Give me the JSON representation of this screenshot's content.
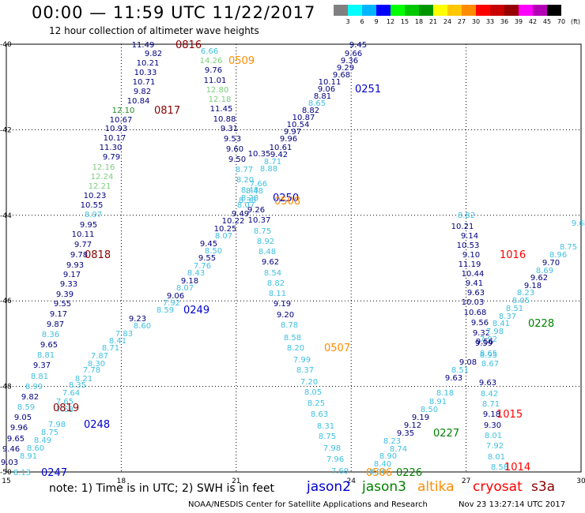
{
  "header": {
    "title": "00:00 — 11:59 UTC 11/22/2017",
    "subtitle": "12 hour collection of altimeter wave heights"
  },
  "color_scale": {
    "colors": [
      "#808080",
      "#00ffff",
      "#00b4ff",
      "#0000ff",
      "#00ff00",
      "#00c800",
      "#009600",
      "#ffff00",
      "#ffc800",
      "#ff8c00",
      "#ff0000",
      "#c80000",
      "#960000",
      "#ff00ff",
      "#b400b4",
      "#000000"
    ],
    "labels": [
      "3",
      "6",
      "9",
      "12",
      "15",
      "18",
      "21",
      "24",
      "27",
      "30",
      "33",
      "36",
      "39",
      "42",
      "45",
      "70",
      "(ft)"
    ]
  },
  "map": {
    "x_ticks": [
      "15",
      "18",
      "21",
      "24",
      "27",
      "30"
    ],
    "y_ticks": [
      "-40",
      "-42",
      "-44",
      "-46",
      "-48",
      "-50"
    ],
    "points": [
      [
        "11.49",
        181,
        56,
        "#000080"
      ],
      [
        "9.82",
        194,
        67,
        "#000080"
      ],
      [
        "10.21",
        187,
        79,
        "#000080"
      ],
      [
        "10.33",
        184,
        91,
        "#000080"
      ],
      [
        "10.71",
        182,
        103,
        "#000080"
      ],
      [
        "9.82",
        180,
        115,
        "#000080"
      ],
      [
        "10.84",
        175,
        127,
        "#000080"
      ],
      [
        "12.10",
        156,
        139,
        "#228b22"
      ],
      [
        "10.67",
        153,
        151,
        "#000080"
      ],
      [
        "10.93",
        147,
        162,
        "#000080"
      ],
      [
        "10.17",
        145,
        174,
        "#000080"
      ],
      [
        "11.30",
        140,
        186,
        "#000080"
      ],
      [
        "9.79",
        141,
        198,
        "#000080"
      ],
      [
        "12.16",
        131,
        211,
        "#7ccd7c"
      ],
      [
        "12.24",
        129,
        223,
        "#7ccd7c"
      ],
      [
        "12.21",
        126,
        235,
        "#7ccd7c"
      ],
      [
        "10.23",
        120,
        247,
        "#000080"
      ],
      [
        "10.55",
        116,
        259,
        "#000080"
      ],
      [
        "8.97",
        118,
        271,
        "#40c0e0"
      ],
      [
        "9.95",
        112,
        284,
        "#000080"
      ],
      [
        "10.11",
        105,
        296,
        "#000080"
      ],
      [
        "9.77",
        105,
        309,
        "#000080"
      ],
      [
        "9.78",
        100,
        322,
        "#000080"
      ],
      [
        "9.93",
        95,
        335,
        "#000080"
      ],
      [
        "9.17",
        91,
        347,
        "#000080"
      ],
      [
        "9.33",
        87,
        359,
        "#000080"
      ],
      [
        "9.39",
        82,
        372,
        "#000080"
      ],
      [
        "9.55",
        79,
        384,
        "#000080"
      ],
      [
        "9.17",
        74,
        397,
        "#000080"
      ],
      [
        "9.87",
        70,
        410,
        "#000080"
      ],
      [
        "8.36",
        64,
        423,
        "#40c0e0"
      ],
      [
        "9.65",
        62,
        436,
        "#000080"
      ],
      [
        "8.81",
        58,
        449,
        "#40c0e0"
      ],
      [
        "9.37",
        53,
        462,
        "#000080"
      ],
      [
        "8.81",
        50,
        476,
        "#40c0e0"
      ],
      [
        "8.99",
        43,
        489,
        "#40c0e0"
      ],
      [
        "9.82",
        38,
        502,
        "#000080"
      ],
      [
        "8.59",
        33,
        515,
        "#40c0e0"
      ],
      [
        "9.05",
        29,
        528,
        "#000080"
      ],
      [
        "9.96",
        24,
        541,
        "#000080"
      ],
      [
        "9.65",
        20,
        555,
        "#000080"
      ],
      [
        "9.46",
        14,
        568,
        "#000080"
      ],
      [
        "9.03",
        12,
        585,
        "#000080"
      ],
      [
        "8.91",
        36,
        577,
        "#40c0e0"
      ],
      [
        "8.60",
        45,
        567,
        "#40c0e0"
      ],
      [
        "8.49",
        54,
        557,
        "#40c0e0"
      ],
      [
        "8.75",
        63,
        547,
        "#40c0e0"
      ],
      [
        "7.98",
        72,
        537,
        "#40c0e0"
      ],
      [
        "7.68",
        82,
        518,
        "#40c0e0"
      ],
      [
        "7.65",
        82,
        508,
        "#40c0e0"
      ],
      [
        "7.64",
        90,
        497,
        "#40c0e0"
      ],
      [
        "8.35",
        98,
        487,
        "#40c0e0"
      ],
      [
        "8.21",
        106,
        479,
        "#40c0e0"
      ],
      [
        "7.78",
        116,
        468,
        "#40c0e0"
      ],
      [
        "8.30",
        122,
        460,
        "#40c0e0"
      ],
      [
        "7.87",
        126,
        450,
        "#40c0e0"
      ],
      [
        "8.71",
        140,
        440,
        "#40c0e0"
      ],
      [
        "8.41",
        149,
        431,
        "#40c0e0"
      ],
      [
        "7.83",
        157,
        422,
        "#40c0e0"
      ],
      [
        "9.23",
        174,
        403,
        "#000080"
      ],
      [
        "8.60",
        180,
        412,
        "#40c0e0"
      ],
      [
        "7.92",
        217,
        383,
        "#40c0e0"
      ],
      [
        "8.59",
        209,
        392,
        "#40c0e0"
      ],
      [
        "9.06",
        222,
        374,
        "#000080"
      ],
      [
        "8.07",
        234,
        364,
        "#40c0e0"
      ],
      [
        "9.18",
        240,
        355,
        "#000080"
      ],
      [
        "8.43",
        248,
        345,
        "#40c0e0"
      ],
      [
        "7.76",
        256,
        336,
        "#40c0e0"
      ],
      [
        "9.55",
        262,
        326,
        "#000080"
      ],
      [
        "8.50",
        270,
        317,
        "#40c0e0"
      ],
      [
        "9.45",
        264,
        308,
        "#000080"
      ],
      [
        "8.07",
        283,
        298,
        "#40c0e0"
      ],
      [
        "10.25",
        285,
        289,
        "#000080"
      ],
      [
        "10.22",
        295,
        279,
        "#000080"
      ],
      [
        "9.49",
        304,
        270,
        "#000080"
      ],
      [
        "8.13",
        28,
        598,
        "#40c0e0"
      ],
      [
        "6.66",
        265,
        64,
        "#40c0e0"
      ],
      [
        "14.26",
        267,
        76,
        "#7ccd7c"
      ],
      [
        "9.76",
        270,
        88,
        "#000080"
      ],
      [
        "11.01",
        272,
        101,
        "#000080"
      ],
      [
        "12.80",
        275,
        113,
        "#7ccd7c"
      ],
      [
        "12.18",
        278,
        125,
        "#7ccd7c"
      ],
      [
        "11.45",
        280,
        137,
        "#000080"
      ],
      [
        "10.88",
        284,
        150,
        "#000080"
      ],
      [
        "9.31",
        290,
        162,
        "#000080"
      ],
      [
        "9.53",
        294,
        175,
        "#000080"
      ],
      [
        "9.60",
        297,
        188,
        "#000080"
      ],
      [
        "9.50",
        300,
        201,
        "#000080"
      ],
      [
        "8.77",
        309,
        214,
        "#40c0e0"
      ],
      [
        "8.20",
        310,
        227,
        "#40c0e0"
      ],
      [
        "8.48",
        316,
        240,
        "#40c0e0"
      ],
      [
        "8.38",
        313,
        253,
        "#40c0e0"
      ],
      [
        "9.26",
        324,
        265,
        "#000080"
      ],
      [
        "10.37",
        328,
        278,
        "#000080"
      ],
      [
        "8.75",
        332,
        292,
        "#40c0e0"
      ],
      [
        "8.92",
        336,
        305,
        "#40c0e0"
      ],
      [
        "8.48",
        338,
        318,
        "#40c0e0"
      ],
      [
        "9.62",
        342,
        331,
        "#000080"
      ],
      [
        "8.54",
        345,
        345,
        "#40c0e0"
      ],
      [
        "8.82",
        349,
        358,
        "#40c0e0"
      ],
      [
        "8.11",
        351,
        371,
        "#40c0e0"
      ],
      [
        "9.19",
        357,
        384,
        "#000080"
      ],
      [
        "9.20",
        361,
        398,
        "#000080"
      ],
      [
        "8.78",
        366,
        411,
        "#40c0e0"
      ],
      [
        "8.58",
        370,
        427,
        "#40c0e0"
      ],
      [
        "8.20",
        374,
        440,
        "#40c0e0"
      ],
      [
        "7.99",
        382,
        455,
        "#40c0e0"
      ],
      [
        "8.37",
        386,
        468,
        "#40c0e0"
      ],
      [
        "7.20",
        391,
        483,
        "#40c0e0"
      ],
      [
        "8.05",
        396,
        496,
        "#40c0e0"
      ],
      [
        "8.25",
        400,
        510,
        "#40c0e0"
      ],
      [
        "8.63",
        404,
        524,
        "#40c0e0"
      ],
      [
        "8.31",
        412,
        539,
        "#40c0e0"
      ],
      [
        "8.75",
        414,
        552,
        "#40c0e0"
      ],
      [
        "7.98",
        420,
        567,
        "#40c0e0"
      ],
      [
        "7.96",
        424,
        581,
        "#40c0e0"
      ],
      [
        "7.69",
        430,
        596,
        "#40c0e0"
      ],
      [
        "9.45",
        453,
        56,
        "#000080"
      ],
      [
        "9.66",
        447,
        67,
        "#000080"
      ],
      [
        "9.36",
        442,
        76,
        "#000080"
      ],
      [
        "9.29",
        437,
        85,
        "#000080"
      ],
      [
        "9.68",
        432,
        94,
        "#000080"
      ],
      [
        "10.11",
        417,
        103,
        "#000080"
      ],
      [
        "9.06",
        413,
        112,
        "#000080"
      ],
      [
        "8.65",
        401,
        130,
        "#40c0e0"
      ],
      [
        "8.81",
        408,
        121,
        "#000080"
      ],
      [
        "8.82",
        393,
        139,
        "#000080"
      ],
      [
        "10.87",
        384,
        148,
        "#000080"
      ],
      [
        "10.54",
        377,
        157,
        "#000080"
      ],
      [
        "9.97",
        370,
        166,
        "#000080"
      ],
      [
        "9.96",
        365,
        175,
        "#000080"
      ],
      [
        "10.61",
        355,
        186,
        "#000080"
      ],
      [
        "9.42",
        353,
        195,
        "#000080"
      ],
      [
        "8.71",
        345,
        204,
        "#40c0e0"
      ],
      [
        "8.88",
        340,
        213,
        "#40c0e0"
      ],
      [
        "10.35",
        328,
        194,
        "#000080"
      ],
      [
        "7.66",
        327,
        232,
        "#40c0e0"
      ],
      [
        "8.48",
        322,
        241,
        "#40c0e0"
      ],
      [
        "8.28",
        316,
        250,
        "#40c0e0"
      ],
      [
        "8.07",
        311,
        259,
        "#40c0e0"
      ],
      [
        "8.82",
        590,
        272,
        "#40c0e0"
      ],
      [
        "10.21",
        585,
        286,
        "#000080"
      ],
      [
        "9.14",
        594,
        298,
        "#000080"
      ],
      [
        "10.53",
        592,
        310,
        "#000080"
      ],
      [
        "9.10",
        596,
        322,
        "#000080"
      ],
      [
        "11.19",
        594,
        334,
        "#000080"
      ],
      [
        "10.44",
        598,
        346,
        "#000080"
      ],
      [
        "9.41",
        600,
        358,
        "#000080"
      ],
      [
        "9.63",
        602,
        370,
        "#000080"
      ],
      [
        "10.03",
        598,
        382,
        "#000080"
      ],
      [
        "10.68",
        601,
        395,
        "#000080"
      ],
      [
        "9.56",
        607,
        408,
        "#000080"
      ],
      [
        "9.32",
        609,
        421,
        "#000080"
      ],
      [
        "9.59",
        612,
        434,
        "#000080"
      ],
      [
        "8.67",
        620,
        460,
        "#40c0e0"
      ],
      [
        "8.65",
        618,
        447,
        "#40c0e0"
      ],
      [
        "9.63",
        617,
        484,
        "#000080"
      ],
      [
        "8.42",
        619,
        498,
        "#40c0e0"
      ],
      [
        "8.71",
        621,
        511,
        "#40c0e0"
      ],
      [
        "9.18",
        622,
        524,
        "#000080"
      ],
      [
        "9.30",
        623,
        538,
        "#000080"
      ],
      [
        "8.01",
        624,
        551,
        "#40c0e0"
      ],
      [
        "7.92",
        626,
        564,
        "#40c0e0"
      ],
      [
        "8.01",
        628,
        578,
        "#40c0e0"
      ],
      [
        "8.58",
        632,
        591,
        "#40c0e0"
      ],
      [
        "9.68",
        734,
        282,
        "#40c0e0"
      ],
      [
        "8.75",
        719,
        312,
        "#40c0e0"
      ],
      [
        "8.96",
        706,
        322,
        "#40c0e0"
      ],
      [
        "9.70",
        697,
        332,
        "#000080"
      ],
      [
        "8.69",
        689,
        342,
        "#40c0e0"
      ],
      [
        "9.62",
        682,
        351,
        "#000080"
      ],
      [
        "9.18",
        674,
        361,
        "#000080"
      ],
      [
        "8.23",
        665,
        370,
        "#40c0e0"
      ],
      [
        "8.05",
        659,
        380,
        "#40c0e0"
      ],
      [
        "8.51",
        651,
        390,
        "#40c0e0"
      ],
      [
        "8.37",
        642,
        400,
        "#40c0e0"
      ],
      [
        "8.41",
        634,
        409,
        "#40c0e0"
      ],
      [
        "7.98",
        626,
        419,
        "#40c0e0"
      ],
      [
        "7.92",
        618,
        429,
        "#40c0e0"
      ],
      [
        "9.56",
        613,
        432,
        "#000080"
      ],
      [
        "8.95",
        618,
        449,
        "#40c0e0"
      ],
      [
        "9.08",
        592,
        458,
        "#000080"
      ],
      [
        "8.51",
        582,
        468,
        "#40c0e0"
      ],
      [
        "9.63",
        574,
        478,
        "#000080"
      ],
      [
        "8.18",
        563,
        497,
        "#40c0e0"
      ],
      [
        "8.91",
        554,
        508,
        "#40c0e0"
      ],
      [
        "8.50",
        543,
        518,
        "#40c0e0"
      ],
      [
        "9.19",
        532,
        528,
        "#000080"
      ],
      [
        "9.12",
        522,
        538,
        "#000080"
      ],
      [
        "9.35",
        513,
        548,
        "#000080"
      ],
      [
        "8.74",
        504,
        568,
        "#40c0e0"
      ],
      [
        "8.90",
        491,
        577,
        "#40c0e0"
      ],
      [
        "8.40",
        484,
        587,
        "#40c0e0"
      ],
      [
        "8.90",
        478,
        597,
        "#40c0e0"
      ],
      [
        "8.23",
        496,
        558,
        "#40c0e0"
      ]
    ],
    "pass_labels": [
      [
        "0816",
        222,
        56,
        "#8b0000"
      ],
      [
        "0509",
        289,
        76,
        "#ff8c00"
      ],
      [
        "0817",
        195,
        139,
        "#8b0000"
      ],
      [
        "0251",
        449,
        112,
        "#0000cd"
      ],
      [
        "0818",
        107,
        322,
        "#8b0000"
      ],
      [
        "0249",
        232,
        392,
        "#0000cd"
      ],
      [
        "0819",
        67,
        516,
        "#8b0000"
      ],
      [
        "0248",
        106,
        537,
        "#0000cd"
      ],
      [
        "0247",
        52,
        598,
        "#0000cd"
      ],
      [
        "0250",
        345,
        250,
        "#0000cd"
      ],
      [
        "0508",
        347,
        254,
        "#ff8c00"
      ],
      [
        "0507",
        410,
        440,
        "#ff8c00"
      ],
      [
        "1016",
        632,
        322,
        "#ff0000"
      ],
      [
        "0228",
        668,
        409,
        "#008000"
      ],
      [
        "0227",
        548,
        548,
        "#008000"
      ],
      [
        "1015",
        628,
        524,
        "#ff0000"
      ],
      [
        "1014",
        638,
        591,
        "#ff0000"
      ],
      [
        "0226",
        501,
        598,
        "#008000"
      ],
      [
        "0506",
        463,
        598,
        "#ff8c00"
      ]
    ]
  },
  "footer": {
    "note": "note: 1) Time is in UTC; 2) SWH is in feet",
    "satellites": [
      {
        "name": "jason2",
        "color": "#0000cd",
        "left": 388
      },
      {
        "name": "jason3",
        "color": "#008000",
        "left": 458
      },
      {
        "name": "altika",
        "color": "#ff8c00",
        "left": 528
      },
      {
        "name": "cryosat",
        "color": "#ff0000",
        "left": 598
      },
      {
        "name": "s3a",
        "color": "#8b0000",
        "left": 672
      }
    ],
    "credit": "NOAA/NESDIS Center for Satellite Applications and Research",
    "timestamp": "Nov 23 13:27:14 UTC 2017"
  }
}
